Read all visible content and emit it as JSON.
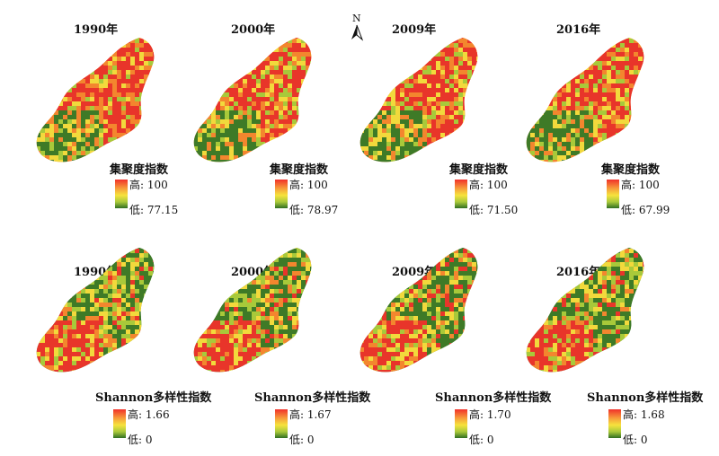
{
  "north_label": "N",
  "palette": {
    "high": "#e8352a",
    "orange": "#f3862e",
    "yellow": "#f2d93c",
    "lightgreen": "#a8c93a",
    "darkgreen": "#3e7a27"
  },
  "rows": [
    {
      "legend_title": "集聚度指数",
      "dominant": "high",
      "panels": [
        {
          "year": "1990年",
          "high": "高: 100",
          "low": "低: 77.15"
        },
        {
          "year": "2000年",
          "high": "高: 100",
          "low": "低: 78.97"
        },
        {
          "year": "2009年",
          "high": "高: 100",
          "low": "低: 71.50"
        },
        {
          "year": "2016年",
          "high": "高: 100",
          "low": "低: 67.99"
        }
      ]
    },
    {
      "legend_title": "Shannon多样性指数",
      "dominant": "low",
      "panels": [
        {
          "year": "1990年",
          "high": "高: 1.66",
          "low": "低: 0"
        },
        {
          "year": "2000年",
          "high": "高: 1.67",
          "low": "低: 0"
        },
        {
          "year": "2009年",
          "high": "高: 1.70",
          "low": "低: 0"
        },
        {
          "year": "2016年",
          "high": "高: 1.68",
          "low": "低: 0"
        }
      ]
    }
  ]
}
